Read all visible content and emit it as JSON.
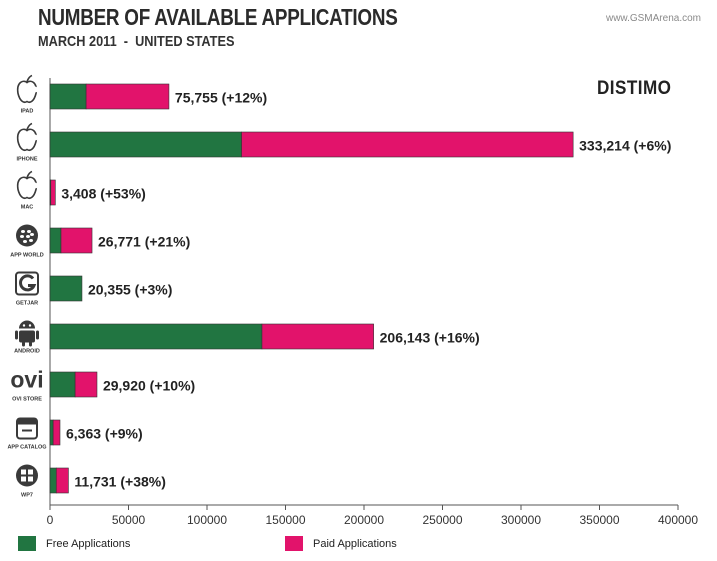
{
  "title": "NUMBER OF AVAILABLE APPLICATIONS",
  "subtitle": "MARCH 2011  -  UNITED STATES",
  "watermark": "www.GSMArena.com",
  "brand": "DISTIMO",
  "colors": {
    "free": "#217541",
    "paid": "#e2136b",
    "icon": "#3a3a3a",
    "axis": "#555555"
  },
  "legend": {
    "free_label": "Free Applications",
    "paid_label": "Paid Applications"
  },
  "chart_data": {
    "type": "bar",
    "orientation": "horizontal",
    "stacked": true,
    "categories": [
      "IPAD",
      "IPHONE",
      "MAC",
      "APP WORLD",
      "GETJAR",
      "ANDROID",
      "OVI STORE",
      "APP CATALOG",
      "WP7"
    ],
    "icons": [
      "apple-icon",
      "apple-icon",
      "apple-icon",
      "blackberry-icon",
      "getjar-icon",
      "android-icon",
      "ovi-icon",
      "palm-icon",
      "windows-icon"
    ],
    "series": [
      {
        "name": "Free Applications",
        "values": [
          23000,
          122000,
          500,
          7000,
          20355,
          135000,
          16000,
          2000,
          4000
        ]
      },
      {
        "name": "Paid Applications",
        "values": [
          52755,
          211214,
          2908,
          19771,
          0,
          71143,
          13920,
          4363,
          7731
        ]
      }
    ],
    "totals": [
      "75,755",
      "333,214",
      "3,408",
      "26,771",
      "20,355",
      "206,143",
      "29,920",
      "6,363",
      "11,731"
    ],
    "growth": [
      "(+12%)",
      "(+6%)",
      "(+53%)",
      "(+21%)",
      "(+3%)",
      "(+16%)",
      "(+10%)",
      "(+9%)",
      "(+38%)"
    ],
    "xlim": [
      0,
      400000
    ],
    "xticks": [
      0,
      50000,
      100000,
      150000,
      200000,
      250000,
      300000,
      350000,
      400000
    ],
    "grid": false,
    "legend_position": "bottom"
  }
}
